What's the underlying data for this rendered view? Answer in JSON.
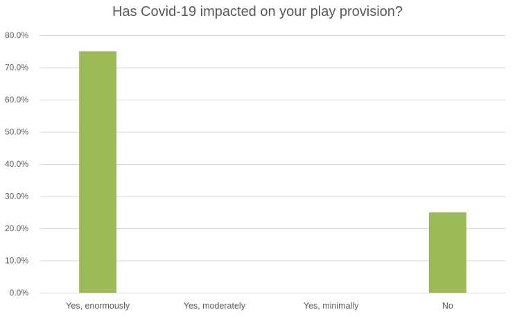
{
  "chart_data": {
    "type": "bar",
    "title": "Has Covid-19 impacted on your play provision?",
    "categories": [
      "Yes, enormously",
      "Yes, moderately",
      "Yes, minimally",
      "No"
    ],
    "values": [
      75.0,
      0.0,
      0.0,
      25.0
    ],
    "value_format": "percent",
    "ylim": [
      0,
      80
    ],
    "y_ticks": [
      "0.0%",
      "10.0%",
      "20.0%",
      "30.0%",
      "40.0%",
      "50.0%",
      "60.0%",
      "70.0%",
      "80.0%"
    ],
    "xlabel": "",
    "ylabel": "",
    "grid": true,
    "legend": "none",
    "colors": {
      "bar": "#9bbb59",
      "grid": "#d9d9d9",
      "text": "#595959"
    }
  }
}
